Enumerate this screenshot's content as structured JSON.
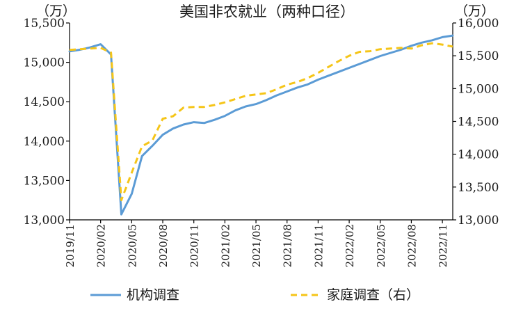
{
  "chart_data": {
    "type": "line",
    "title": "美国非农就业（两种口径）",
    "y_unit_left": "（万）",
    "y_unit_right": "（万）",
    "x_tick_labels": [
      "2019/11",
      "2020/02",
      "2020/05",
      "2020/08",
      "2020/11",
      "2021/02",
      "2021/05",
      "2021/08",
      "2021/11",
      "2022/02",
      "2022/05",
      "2022/08",
      "2022/11"
    ],
    "ylim_left": [
      13000,
      15500
    ],
    "yticks_left": [
      "13,000",
      "13,500",
      "14,000",
      "14,500",
      "15,000",
      "15,500"
    ],
    "ylim_right": [
      13000,
      16000
    ],
    "yticks_right": [
      "13,000",
      "13,500",
      "14,000",
      "14,500",
      "15,000",
      "15,500",
      "16,000"
    ],
    "grid": false,
    "legend_position": "bottom",
    "x": [
      "2019/11",
      "2019/12",
      "2020/01",
      "2020/02",
      "2020/03",
      "2020/04",
      "2020/05",
      "2020/06",
      "2020/07",
      "2020/08",
      "2020/09",
      "2020/10",
      "2020/11",
      "2020/12",
      "2021/01",
      "2021/02",
      "2021/03",
      "2021/04",
      "2021/05",
      "2021/06",
      "2021/07",
      "2021/08",
      "2021/09",
      "2021/10",
      "2021/11",
      "2021/12",
      "2022/01",
      "2022/02",
      "2022/03",
      "2022/04",
      "2022/05",
      "2022/06",
      "2022/07",
      "2022/08",
      "2022/09",
      "2022/10",
      "2022/11",
      "2022/12"
    ],
    "series": [
      {
        "name": "机构调查",
        "axis": "left",
        "color": "#5b9bd5",
        "style": "solid",
        "values": [
          15140,
          15160,
          15190,
          15230,
          15100,
          13070,
          13330,
          13810,
          13940,
          14080,
          14160,
          14210,
          14240,
          14230,
          14270,
          14320,
          14390,
          14440,
          14470,
          14520,
          14580,
          14630,
          14680,
          14720,
          14780,
          14830,
          14880,
          14930,
          14980,
          15030,
          15080,
          15120,
          15160,
          15210,
          15250,
          15280,
          15320,
          15340
        ]
      },
      {
        "name": "家庭调查（右）",
        "axis": "right",
        "color": "#f5c518",
        "style": "dashed",
        "values": [
          15590,
          15600,
          15610,
          15620,
          15550,
          13300,
          13720,
          14120,
          14210,
          14540,
          14580,
          14710,
          14720,
          14720,
          14750,
          14790,
          14840,
          14890,
          14910,
          14930,
          14990,
          15060,
          15100,
          15160,
          15240,
          15330,
          15420,
          15500,
          15560,
          15570,
          15600,
          15610,
          15620,
          15610,
          15660,
          15690,
          15670,
          15640
        ]
      }
    ]
  }
}
